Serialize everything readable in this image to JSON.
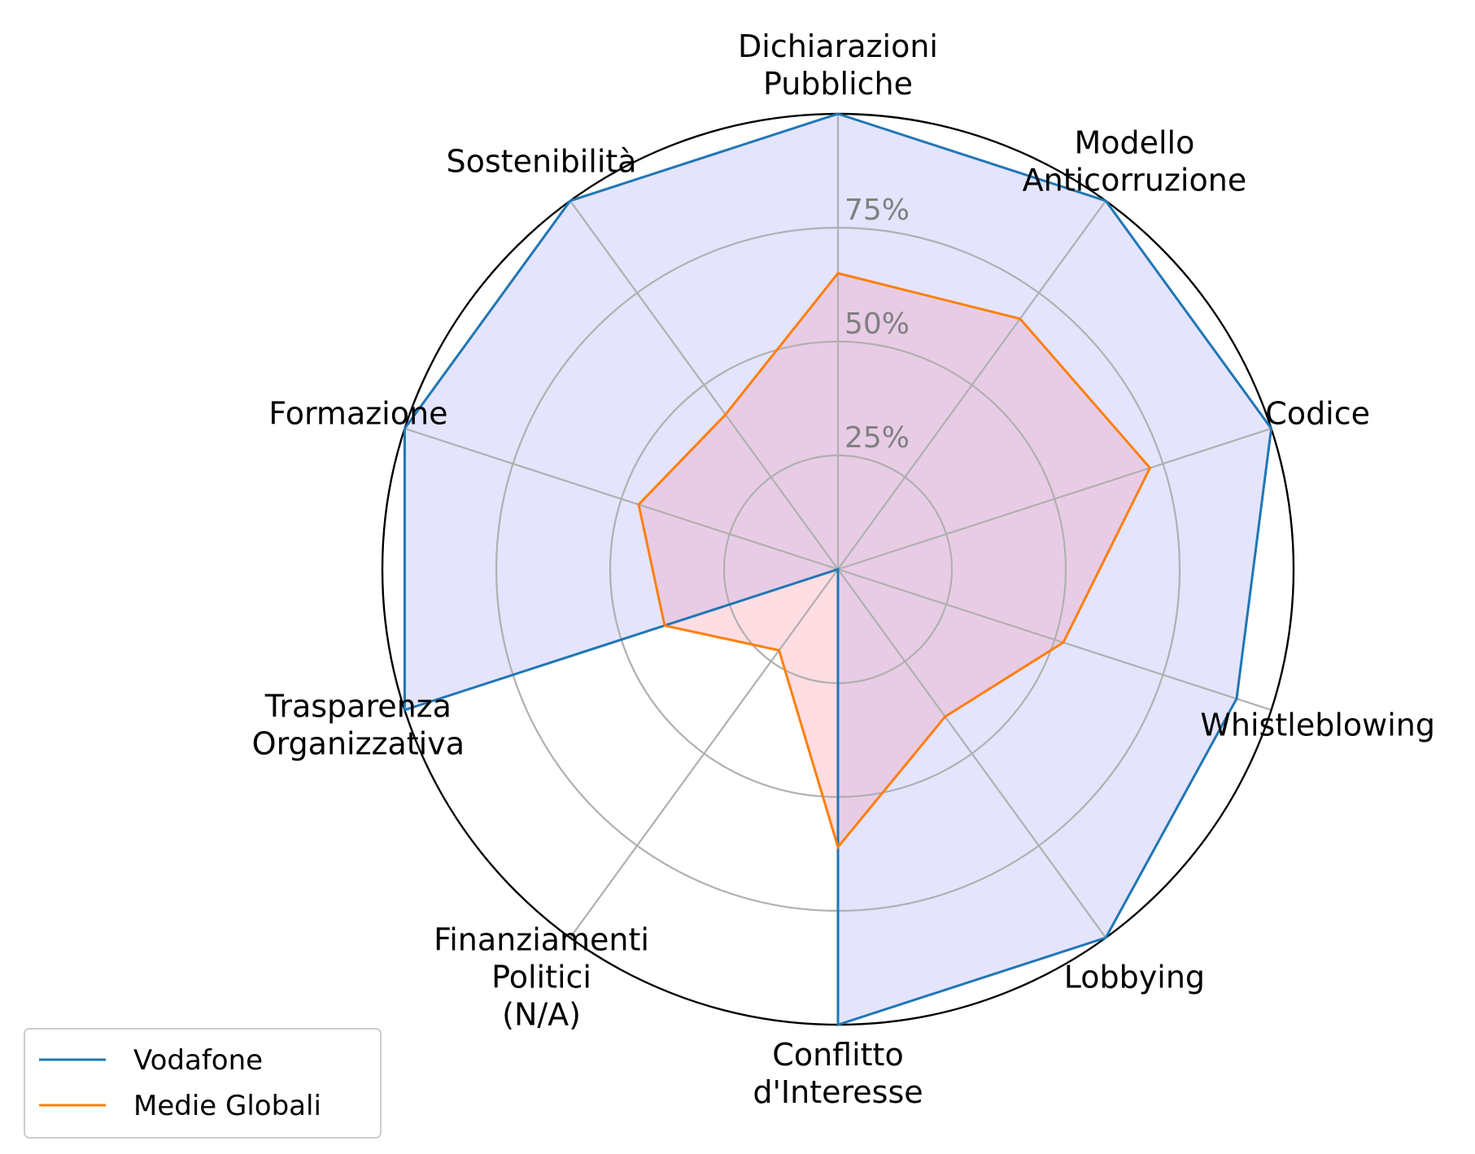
{
  "chart_data": {
    "type": "radar",
    "title": "",
    "categories": [
      [
        "Dichiarazioni",
        "Pubbliche"
      ],
      [
        "Modello",
        "Anticorruzione"
      ],
      [
        "Codice"
      ],
      [
        "Whistleblowing"
      ],
      [
        "Lobbying"
      ],
      [
        "Conflitto",
        "d'Interesse"
      ],
      [
        "Finanziamenti",
        "Politici",
        "(N/A)"
      ],
      [
        "Trasparenza",
        "Organizzativa"
      ],
      [
        "Formazione"
      ],
      [
        "Sostenibilità"
      ]
    ],
    "rlim": [
      0,
      100
    ],
    "rticks": [
      25,
      50,
      75
    ],
    "rtick_labels": [
      "25%",
      "50%",
      "75%"
    ],
    "grid": true,
    "series": [
      {
        "name": "Vodafone",
        "values": [
          100,
          100,
          100,
          92,
          100,
          100,
          0,
          100,
          100,
          100
        ],
        "line_color": "#1f77b4",
        "fill_color": "#e4e4fd"
      },
      {
        "name": "Medie Globali",
        "values": [
          65,
          68,
          72,
          52,
          40,
          61,
          22,
          40,
          46,
          42
        ],
        "line_color": "#ff7f0e",
        "fill_color": "#ffdde2"
      }
    ],
    "legend_position": "lower-left",
    "overlap_fill_color": "#e8cce6"
  }
}
